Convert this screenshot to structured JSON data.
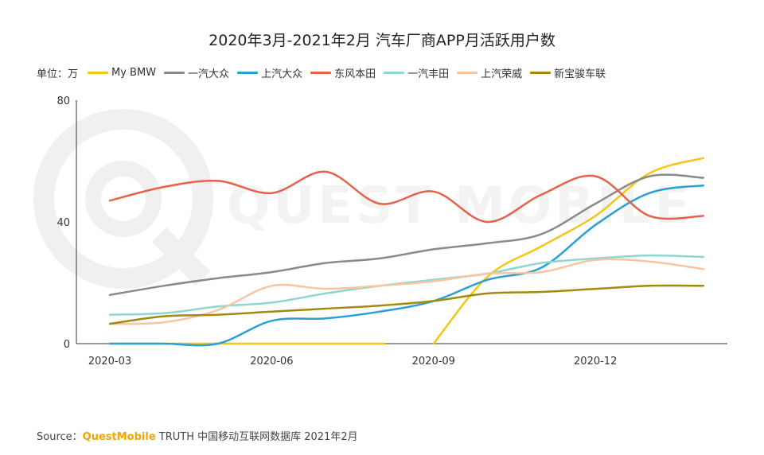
{
  "chart_data": {
    "type": "line",
    "title": "2020年3月-2021年2月 汽车厂商APP月活跃用户数",
    "unit_label": "单位：万",
    "x": [
      "2020-03",
      "2020-04",
      "2020-05",
      "2020-06",
      "2020-07",
      "2020-08",
      "2020-09",
      "2020-10",
      "2020-11",
      "2020-12",
      "2021-01",
      "2021-02"
    ],
    "x_tick_labels": [
      "2020-03",
      "2020-06",
      "2020-09",
      "2020-12"
    ],
    "y_ticks": [
      0,
      40,
      80
    ],
    "ylim": [
      0,
      80
    ],
    "legend_position": "top",
    "grid": false,
    "series": [
      {
        "name": "My BMW",
        "color": "#f5c518",
        "values": [
          null,
          null,
          null,
          null,
          null,
          null,
          0,
          22,
          32,
          42,
          56,
          61
        ]
      },
      {
        "name": "一汽大众",
        "color": "#8a8a8a",
        "values": [
          16,
          19,
          21.5,
          23.5,
          26.5,
          28,
          31,
          33,
          36,
          46,
          55,
          54.5
        ]
      },
      {
        "name": "上汽大众",
        "color": "#2a9fd6",
        "values": [
          0,
          0,
          0,
          7.5,
          8.3,
          10.5,
          14,
          21,
          25,
          39,
          49.5,
          52
        ]
      },
      {
        "name": "东风本田",
        "color": "#e8614a",
        "values": [
          47,
          51.5,
          53.5,
          49.5,
          56.5,
          46,
          50,
          40,
          49,
          55,
          42,
          42
        ]
      },
      {
        "name": "一汽丰田",
        "color": "#8fd6d0",
        "values": [
          9.5,
          10,
          12.2,
          13.5,
          16.5,
          19,
          21,
          23,
          26.5,
          28,
          29,
          28.5
        ]
      },
      {
        "name": "上汽荣威",
        "color": "#f5c6a0",
        "values": [
          6.5,
          7,
          11,
          19,
          18,
          19,
          20.5,
          23,
          23.5,
          27.5,
          27,
          24.5
        ]
      },
      {
        "name": "新宝骏车联",
        "color": "#a38910",
        "values": [
          6.5,
          9,
          9.5,
          10.5,
          11.5,
          12.5,
          14,
          16.5,
          17,
          18,
          19,
          19
        ]
      }
    ]
  },
  "watermark": "QUEST MOBILE",
  "source": {
    "prefix": "Source：",
    "brand": "QuestMobile",
    "rest": " TRUTH 中国移动互联网数据库 2021年2月"
  }
}
